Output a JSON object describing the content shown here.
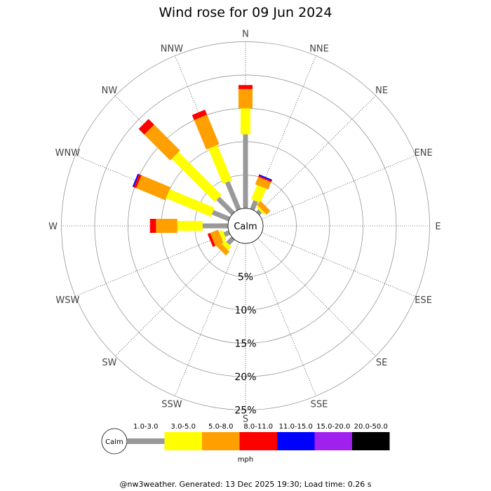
{
  "chart_data": {
    "type": "windrose",
    "title": "Wind rose for 09 Jun 2024",
    "calm_label": "Calm",
    "unit": "mph",
    "footer": "@nw3weather. Generated: 13 Dec 2025 19:30; Load time: 0.26 s",
    "directions": [
      "N",
      "NNE",
      "NE",
      "ENE",
      "E",
      "ESE",
      "SE",
      "SSE",
      "S",
      "SSW",
      "SW",
      "WSW",
      "W",
      "WNW",
      "NW",
      "NNW"
    ],
    "rings": [
      5,
      10,
      15,
      20,
      25
    ],
    "ring_labels": [
      "5%",
      "10%",
      "15%",
      "20%",
      "25%"
    ],
    "speed_bins": [
      {
        "label": "1.0-3.0",
        "color": "#999999"
      },
      {
        "label": "3.0-5.0",
        "color": "#ffff00"
      },
      {
        "label": "5.0-8.0",
        "color": "#ffa000"
      },
      {
        "label": "8.0-11.0",
        "color": "#ff0000"
      },
      {
        "label": "11.0-15.0",
        "color": "#0000ff"
      },
      {
        "label": "15.0-20.0",
        "color": "#a020f0"
      },
      {
        "label": "20.0-50.0",
        "color": "#000000"
      }
    ],
    "values": {
      "N": [
        11.1,
        3.9,
        2.9,
        0.6,
        0,
        0,
        0
      ],
      "NNE": [
        1.4,
        2.3,
        1.2,
        0.2,
        0.2,
        0,
        0
      ],
      "NE": [
        0.5,
        0.3,
        0.8,
        0,
        0,
        0,
        0
      ],
      "ENE": [
        0,
        0,
        0,
        0,
        0,
        0,
        0
      ],
      "E": [
        0,
        0,
        0,
        0,
        0,
        0,
        0
      ],
      "ESE": [
        0,
        0,
        0,
        0,
        0,
        0,
        0
      ],
      "SE": [
        0,
        0,
        0,
        0,
        0,
        0,
        0
      ],
      "SSE": [
        0,
        0,
        0,
        0,
        0,
        0,
        0
      ],
      "S": [
        0,
        0,
        0,
        0,
        0,
        0,
        0
      ],
      "SSW": [
        0,
        0,
        0,
        0,
        0,
        0,
        0
      ],
      "SW": [
        1.1,
        0.7,
        0.8,
        0,
        0,
        0,
        0
      ],
      "WSW": [
        0.8,
        0.6,
        1.3,
        0.4,
        0,
        0,
        0
      ],
      "W": [
        3.8,
        3.8,
        3.2,
        0.9,
        0,
        0,
        0
      ],
      "WNW": [
        2.7,
        7.3,
        4.7,
        0.4,
        0.2,
        0,
        0
      ],
      "NW": [
        3.2,
        9.1,
        5.5,
        1.2,
        0,
        0,
        0
      ],
      "NNW": [
        4.5,
        5.7,
        4.8,
        0.8,
        0,
        0,
        0
      ]
    }
  }
}
